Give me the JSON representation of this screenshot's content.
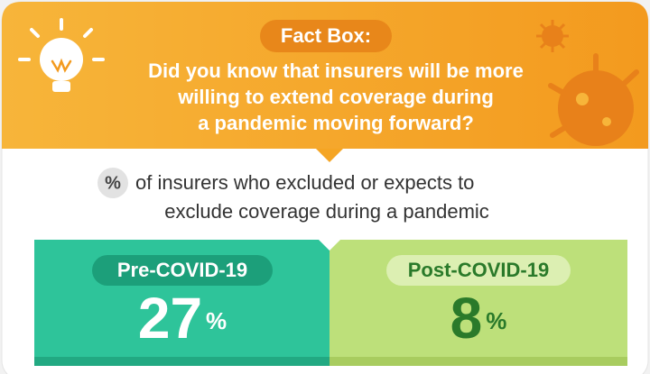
{
  "header": {
    "label": "Fact Box:",
    "question": [
      "Did you know that insurers will be more",
      "willing to extend coverage during",
      "a pandemic moving forward?"
    ]
  },
  "subtitle": {
    "badge": "%",
    "lines": [
      "of insurers who excluded or expects to",
      "exclude coverage during a pandemic"
    ]
  },
  "panels": [
    {
      "label": "Pre-COVID-19",
      "value": 27,
      "unit": "%"
    },
    {
      "label": "Post-COVID-19",
      "value": 8,
      "unit": "%"
    }
  ]
}
